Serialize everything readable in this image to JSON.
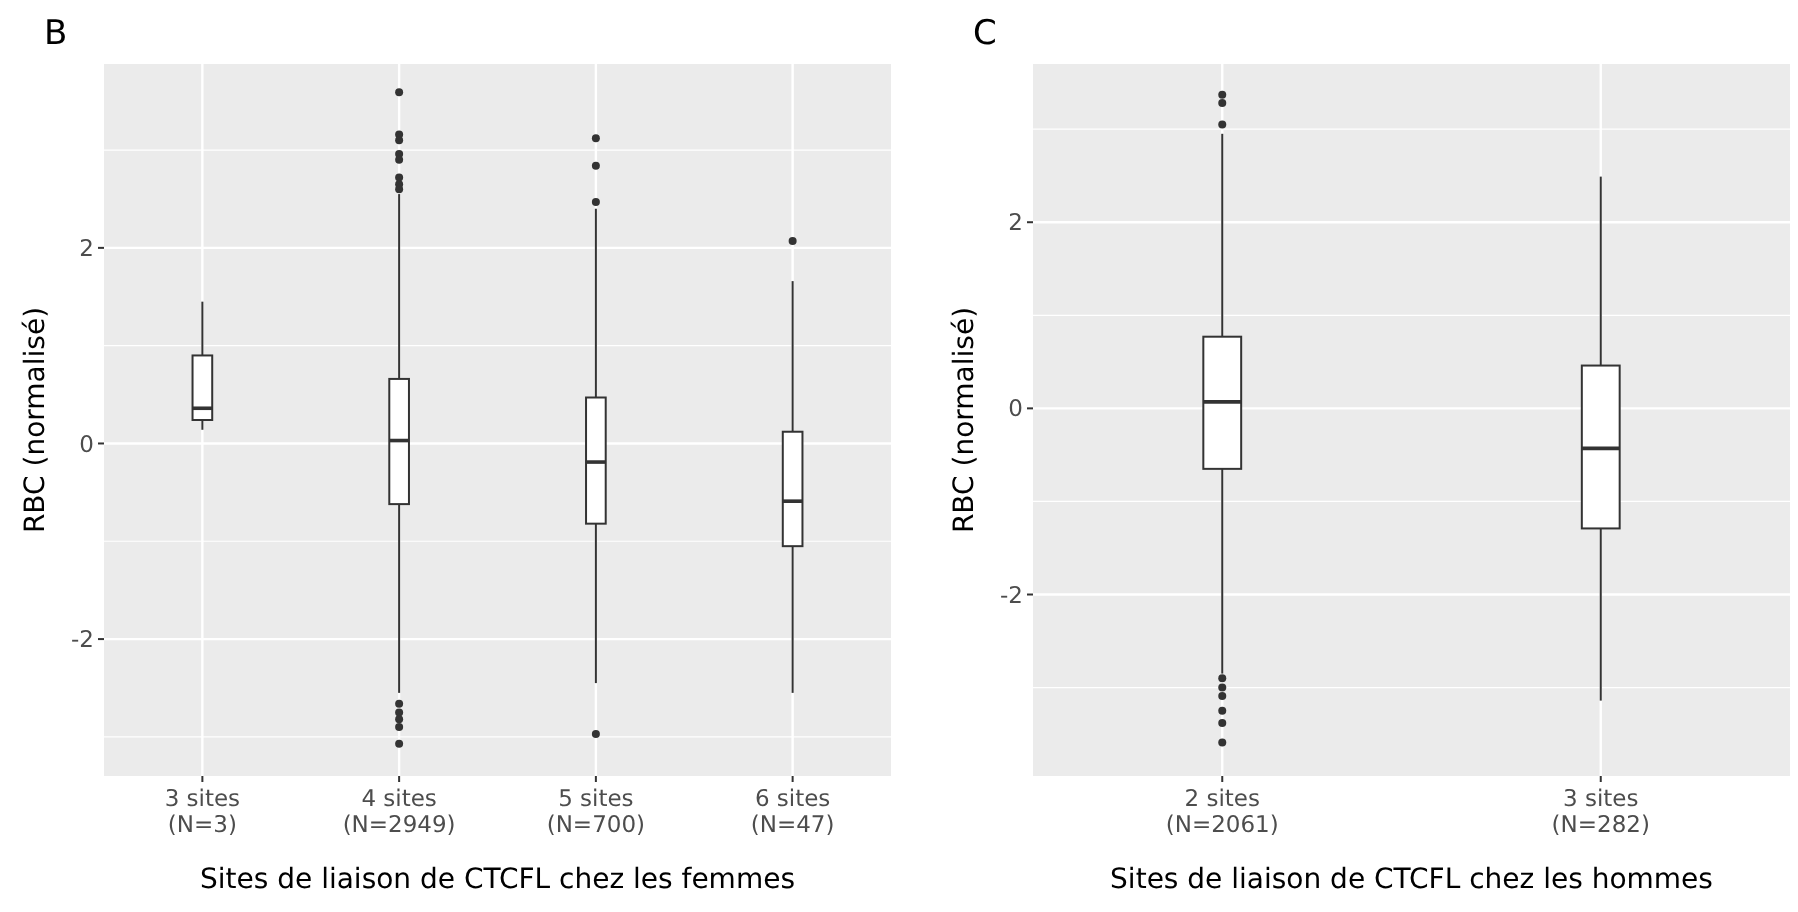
{
  "chart_data": [
    {
      "type": "box",
      "title": "B",
      "xlabel": "Sites de liaison de CTCFL chez les femmes",
      "ylabel": "RBC (normalisé)",
      "categories": [
        "3 sites\n(N=3)",
        "4 sites\n(N=2949)",
        "5 sites\n(N=700)",
        "6 sites\n(N=47)"
      ],
      "ylim": [
        -3.4,
        3.88
      ],
      "yticks": [
        -2,
        0,
        2
      ],
      "grid": true,
      "boxes": [
        {
          "low": 0.14,
          "q1": 0.24,
          "median": 0.36,
          "q3": 0.9,
          "high": 1.45
        },
        {
          "low": -2.55,
          "q1": -0.62,
          "median": 0.03,
          "q3": 0.66,
          "high": 2.55,
          "outliers": [
            3.59,
            3.16,
            3.1,
            2.96,
            2.9,
            2.72,
            2.65,
            2.6,
            -2.66,
            -2.75,
            -2.82,
            -2.9,
            -3.07
          ]
        },
        {
          "low": -2.45,
          "q1": -0.82,
          "median": -0.19,
          "q3": 0.47,
          "high": 2.4,
          "outliers": [
            3.12,
            2.84,
            2.47,
            -2.97
          ]
        },
        {
          "low": -2.55,
          "q1": -1.05,
          "median": -0.59,
          "q3": 0.12,
          "high": 1.66,
          "outliers": [
            2.07
          ]
        }
      ]
    },
    {
      "type": "box",
      "title": "C",
      "xlabel": "Sites de liaison de CTCFL chez les hommes",
      "ylabel": "RBC (normalisé)",
      "categories": [
        "2 sites\n(N=2061)",
        "3 sites\n(N=282)"
      ],
      "ylim": [
        -3.95,
        3.7
      ],
      "yticks": [
        -2,
        0,
        2
      ],
      "grid": true,
      "boxes": [
        {
          "low": -2.85,
          "q1": -0.65,
          "median": 0.07,
          "q3": 0.77,
          "high": 2.95,
          "outliers": [
            3.05,
            3.28,
            3.37,
            -2.9,
            -3.0,
            -3.09,
            -3.25,
            -3.38,
            -3.59
          ]
        },
        {
          "low": -3.14,
          "q1": -1.29,
          "median": -0.43,
          "q3": 0.46,
          "high": 2.49
        }
      ]
    }
  ]
}
